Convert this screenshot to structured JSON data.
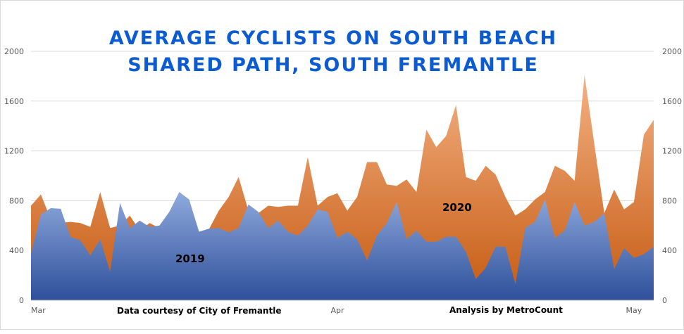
{
  "chart_data": {
    "type": "area",
    "title_lines": [
      "AVERAGE CYCLISTS ON SOUTH BEACH",
      "SHARED PATH, SOUTH FREMANTLE"
    ],
    "xlabel": "",
    "ylabel": "",
    "ylim": [
      0,
      2000
    ],
    "y_ticks": [
      0,
      400,
      800,
      1200,
      1600,
      2000
    ],
    "x_tick_labels": [
      "Mar",
      "Apr",
      "May"
    ],
    "x_tick_days": [
      0,
      31,
      61
    ],
    "x_range_days": [
      0,
      63
    ],
    "grid": true,
    "legend": "none",
    "series": [
      {
        "name": "2019",
        "color": "#4472c4",
        "values": [
          380,
          690,
          740,
          735,
          510,
          480,
          360,
          490,
          230,
          780,
          580,
          640,
          590,
          600,
          710,
          870,
          810,
          550,
          575,
          580,
          545,
          580,
          770,
          710,
          580,
          640,
          550,
          520,
          600,
          730,
          710,
          500,
          550,
          490,
          320,
          520,
          620,
          790,
          490,
          560,
          470,
          470,
          510,
          510,
          390,
          170,
          260,
          430,
          430,
          130,
          580,
          630,
          810,
          500,
          560,
          790,
          600,
          630,
          700,
          250,
          420,
          340,
          370,
          430
        ]
      },
      {
        "name": "2020",
        "color": "#ed7d31",
        "values": [
          760,
          850,
          650,
          620,
          630,
          620,
          590,
          870,
          580,
          600,
          680,
          560,
          620,
          580,
          600,
          700,
          800,
          550,
          570,
          720,
          830,
          990,
          720,
          700,
          760,
          750,
          760,
          760,
          1150,
          760,
          830,
          860,
          720,
          830,
          1110,
          1110,
          930,
          920,
          970,
          870,
          1370,
          1230,
          1320,
          1570,
          990,
          960,
          1080,
          1010,
          830,
          680,
          730,
          810,
          870,
          1080,
          1040,
          960,
          1810,
          1250,
          700,
          890,
          730,
          790,
          1330,
          1450
        ]
      }
    ],
    "annotations": [
      "Data courtesy of City of Fremantle",
      "Analysis by MetroCount"
    ]
  },
  "colors": {
    "title": "#0b5bd3",
    "gridline": "#d9d9d9",
    "axis_text": "#595959"
  }
}
